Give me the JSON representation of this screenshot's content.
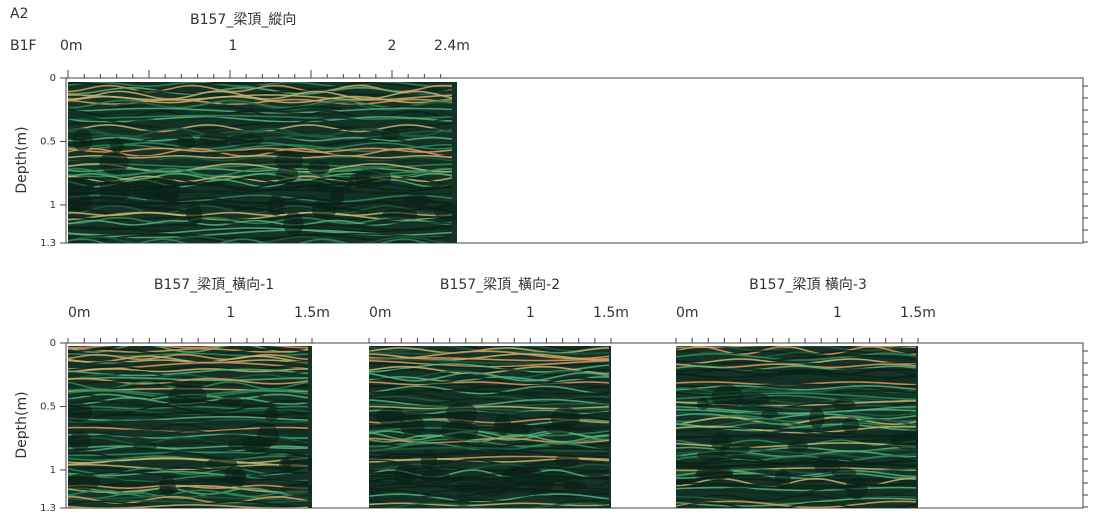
{
  "top": {
    "label": "A2",
    "floor": "B1F",
    "title": "B157_梁頂_縱向",
    "x_ticks": [
      "0m",
      "1",
      "2",
      "2.4m"
    ]
  },
  "depth_axis": {
    "label": "Depth(m)",
    "ticks": [
      "0",
      "0.5",
      "1",
      "1.3"
    ]
  },
  "bottom": [
    {
      "title": "B157_梁頂_橫向-1",
      "x_ticks": [
        "0m",
        "1",
        "1.5m"
      ]
    },
    {
      "title": "B157_梁頂_橫向-2",
      "x_ticks": [
        "0m",
        "1",
        "1.5m"
      ]
    },
    {
      "title": "B157_梁頂 橫向-3",
      "x_ticks": [
        "0m",
        "1",
        "1.5m"
      ]
    }
  ]
}
